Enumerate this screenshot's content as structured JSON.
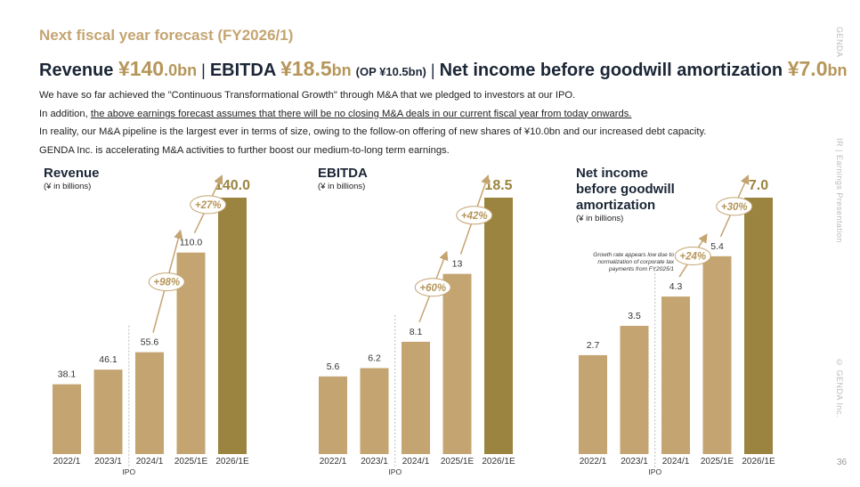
{
  "header": {
    "section_title": "Next fiscal year forecast (FY2026/1)",
    "headline": [
      "Revenue ",
      "¥140",
      ".0bn",
      "|",
      "EBITDA ",
      "¥18.5",
      "bn ",
      "(OP ¥10.5bn)",
      "|",
      "Net income before goodwill amortization ",
      "¥7.0",
      "bn"
    ],
    "paragraphs": [
      [
        "We have so far achieved the \"Continuous Transformational Growth\" through M&A that we pledged to investors at our IPO."
      ],
      [
        "In addition, ",
        "the above earnings forecast assumes that there will be no closing M&A deals in our current fiscal year from today onwards."
      ],
      [
        "In reality, our M&A pipeline is the largest ever in terms of size, owing to the follow-on offering of new shares of ¥10.0bn and our increased debt capacity."
      ],
      [
        "GENDA Inc. is accelerating M&A activities to further boost our medium-to-long term earnings."
      ]
    ],
    "side": [
      "GENDA",
      "IR | Earnings Presentation",
      "© GENDA Inc."
    ],
    "page": "36"
  },
  "chart_data": [
    {
      "type": "bar",
      "title": "Revenue",
      "subtitle": "(¥ in billions)",
      "categories": [
        "2022/1",
        "2023/1",
        "2024/1",
        "2025/1E",
        "2026/1E"
      ],
      "values": [
        38.1,
        46.1,
        55.6,
        110.0,
        140.0
      ],
      "value_labels": [
        "38.1",
        "46.1",
        "55.6",
        "110.0",
        "140.0"
      ],
      "colors": [
        "#c4a471",
        "#c4a471",
        "#c4a471",
        "#c4a471",
        "#9a8440"
      ],
      "marker_label": "IPO",
      "growth_labels": [
        "+98%",
        "+27%"
      ]
    },
    {
      "type": "bar",
      "title": "EBITDA",
      "subtitle": "(¥ in billions)",
      "categories": [
        "2022/1",
        "2023/1",
        "2024/1",
        "2025/1E",
        "2026/1E"
      ],
      "values": [
        5.6,
        6.2,
        8.1,
        13,
        18.5
      ],
      "value_labels": [
        "5.6",
        "6.2",
        "8.1",
        "13",
        "18.5"
      ],
      "colors": [
        "#c4a471",
        "#c4a471",
        "#c4a471",
        "#c4a471",
        "#9a8440"
      ],
      "marker_label": "IPO",
      "growth_labels": [
        "+60%",
        "+42%"
      ]
    },
    {
      "type": "bar",
      "title": "Net income before goodwill amortization",
      "subtitle": "(¥ in billions)",
      "categories": [
        "2022/1",
        "2023/1",
        "2024/1",
        "2025/1E",
        "2026/1E"
      ],
      "values": [
        2.7,
        3.5,
        4.3,
        5.4,
        7.0
      ],
      "value_labels": [
        "2.7",
        "3.5",
        "4.3",
        "5.4",
        "7.0"
      ],
      "colors": [
        "#c4a471",
        "#c4a471",
        "#c4a471",
        "#c4a471",
        "#9a8440"
      ],
      "marker_label": "IPO",
      "growth_labels": [
        "+24%",
        "+30%"
      ],
      "note": [
        "Growth rate appears low due to",
        "normalization of corporate tax",
        "payments from FY2025/1"
      ]
    }
  ]
}
